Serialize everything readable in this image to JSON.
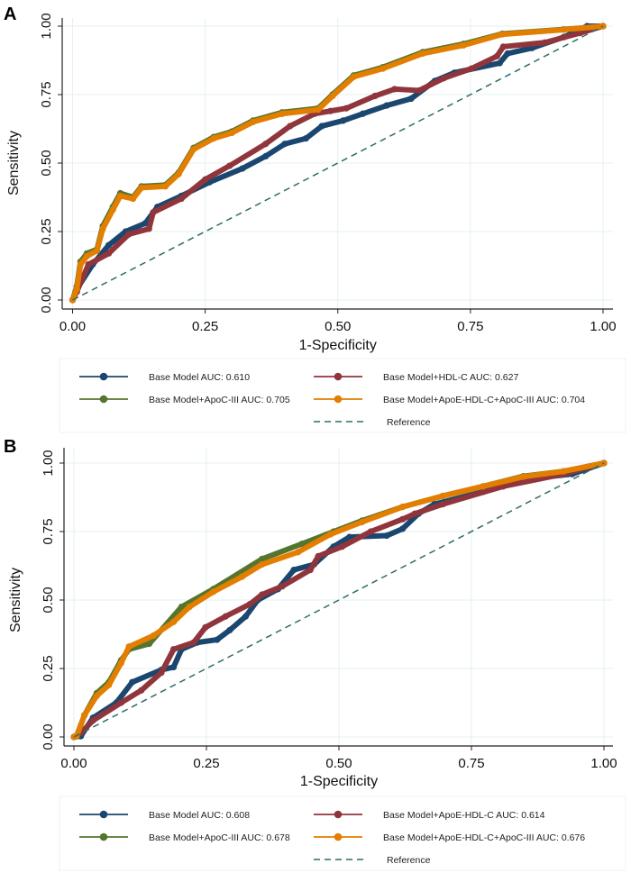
{
  "colors": {
    "base": "#1a476f",
    "hdl": "#90353b",
    "apoc": "#55752f",
    "combined": "#e37e00",
    "reference": "#2d6d66",
    "grid": "#e6eff1"
  },
  "chart_data": [
    {
      "type": "line",
      "panel_label": "A",
      "xlabel": "1-Specificity",
      "ylabel": "Sensitivity",
      "xlim": [
        0,
        1
      ],
      "ylim": [
        0,
        1
      ],
      "xticks": [
        "0.00",
        "0.25",
        "0.50",
        "0.75",
        "1.00"
      ],
      "yticks": [
        "0.00",
        "0.25",
        "0.50",
        "0.75",
        "1.00"
      ],
      "grid": true,
      "legend_position": "bottom",
      "series": [
        {
          "name": "Base Model AUC: 0.610",
          "color_key": "base",
          "x": [
            0,
            0.008,
            0.038,
            0.068,
            0.1,
            0.137,
            0.16,
            0.205,
            0.258,
            0.32,
            0.364,
            0.4,
            0.44,
            0.47,
            0.51,
            0.547,
            0.592,
            0.638,
            0.683,
            0.72,
            0.805,
            0.82,
            0.866,
            0.926,
            0.97,
            1
          ],
          "y": [
            0,
            0.04,
            0.13,
            0.2,
            0.25,
            0.28,
            0.34,
            0.38,
            0.43,
            0.48,
            0.525,
            0.57,
            0.59,
            0.635,
            0.655,
            0.68,
            0.71,
            0.735,
            0.8,
            0.83,
            0.865,
            0.9,
            0.92,
            0.96,
            1,
            1
          ]
        },
        {
          "name": "Base Model+HDL-C AUC: 0.627",
          "color_key": "hdl",
          "x": [
            0,
            0.008,
            0.03,
            0.068,
            0.106,
            0.144,
            0.152,
            0.205,
            0.25,
            0.296,
            0.364,
            0.41,
            0.456,
            0.486,
            0.516,
            0.57,
            0.607,
            0.653,
            0.7,
            0.752,
            0.8,
            0.812,
            0.89,
            0.957,
            1
          ],
          "y": [
            0,
            0.03,
            0.13,
            0.17,
            0.24,
            0.26,
            0.32,
            0.37,
            0.44,
            0.49,
            0.57,
            0.635,
            0.68,
            0.69,
            0.7,
            0.745,
            0.77,
            0.765,
            0.81,
            0.845,
            0.89,
            0.925,
            0.94,
            0.975,
            1
          ]
        },
        {
          "name": "Base Model+ApoC-III AUC: 0.705",
          "color_key": "apoc",
          "x": [
            0,
            0.008,
            0.015,
            0.027,
            0.046,
            0.057,
            0.076,
            0.09,
            0.114,
            0.13,
            0.175,
            0.2,
            0.228,
            0.266,
            0.3,
            0.34,
            0.395,
            0.463,
            0.49,
            0.53,
            0.585,
            0.66,
            0.737,
            0.81,
            0.926,
            1
          ],
          "y": [
            0,
            0.05,
            0.14,
            0.17,
            0.185,
            0.27,
            0.34,
            0.39,
            0.375,
            0.415,
            0.42,
            0.465,
            0.555,
            0.595,
            0.615,
            0.655,
            0.685,
            0.7,
            0.75,
            0.82,
            0.85,
            0.905,
            0.935,
            0.972,
            0.988,
            1
          ]
        },
        {
          "name": "Base Model+ApoE-HDL-C+ApoC-III AUC: 0.704",
          "color_key": "combined",
          "x": [
            0,
            0.008,
            0.015,
            0.027,
            0.046,
            0.057,
            0.076,
            0.09,
            0.114,
            0.13,
            0.175,
            0.2,
            0.228,
            0.266,
            0.3,
            0.34,
            0.395,
            0.463,
            0.49,
            0.53,
            0.585,
            0.66,
            0.737,
            0.81,
            0.926,
            1
          ],
          "y": [
            0,
            0.04,
            0.13,
            0.16,
            0.18,
            0.26,
            0.33,
            0.38,
            0.37,
            0.41,
            0.415,
            0.46,
            0.55,
            0.59,
            0.61,
            0.65,
            0.68,
            0.695,
            0.745,
            0.815,
            0.845,
            0.9,
            0.93,
            0.97,
            0.987,
            1
          ]
        }
      ],
      "reference": {
        "name": "Reference",
        "x": [
          0,
          1
        ],
        "y": [
          0,
          1
        ]
      }
    },
    {
      "type": "line",
      "panel_label": "B",
      "xlabel": "1-Specificity",
      "ylabel": "Sensitivity",
      "xlim": [
        0,
        1
      ],
      "ylim": [
        0,
        1
      ],
      "xticks": [
        "0.00",
        "0.25",
        "0.50",
        "0.75",
        "1.00"
      ],
      "yticks": [
        "0.00",
        "0.25",
        "0.50",
        "0.75",
        "1.00"
      ],
      "grid": true,
      "legend_position": "bottom",
      "series": [
        {
          "name": "Base Model AUC: 0.608",
          "color_key": "base",
          "x": [
            0,
            0.013,
            0.036,
            0.08,
            0.11,
            0.165,
            0.188,
            0.203,
            0.233,
            0.27,
            0.294,
            0.324,
            0.347,
            0.385,
            0.415,
            0.453,
            0.49,
            0.52,
            0.59,
            0.62,
            0.65,
            0.68,
            0.772,
            0.848,
            0.94,
            1
          ],
          "y": [
            0,
            0.003,
            0.07,
            0.125,
            0.2,
            0.245,
            0.255,
            0.32,
            0.345,
            0.355,
            0.39,
            0.44,
            0.5,
            0.54,
            0.61,
            0.63,
            0.695,
            0.73,
            0.735,
            0.76,
            0.815,
            0.85,
            0.895,
            0.94,
            0.96,
            1
          ]
        },
        {
          "name": "Base Model+ApoE-HDL-C AUC: 0.614",
          "color_key": "hdl",
          "x": [
            0,
            0.013,
            0.036,
            0.089,
            0.127,
            0.165,
            0.188,
            0.226,
            0.248,
            0.286,
            0.332,
            0.355,
            0.393,
            0.446,
            0.461,
            0.506,
            0.56,
            0.62,
            0.643,
            0.696,
            0.81,
            0.924,
            1
          ],
          "y": [
            0,
            0.015,
            0.06,
            0.125,
            0.17,
            0.235,
            0.32,
            0.345,
            0.4,
            0.44,
            0.485,
            0.52,
            0.55,
            0.61,
            0.66,
            0.695,
            0.75,
            0.795,
            0.815,
            0.85,
            0.915,
            0.96,
            1
          ]
        },
        {
          "name": "Base Model+ApoC-III AUC: 0.678",
          "color_key": "apoc",
          "x": [
            0,
            0.005,
            0.02,
            0.043,
            0.066,
            0.089,
            0.104,
            0.142,
            0.203,
            0.263,
            0.355,
            0.43,
            0.49,
            0.544,
            0.62,
            0.696,
            0.772,
            0.848,
            0.924,
            1
          ],
          "y": [
            0,
            0.003,
            0.08,
            0.16,
            0.2,
            0.28,
            0.32,
            0.34,
            0.475,
            0.54,
            0.65,
            0.705,
            0.75,
            0.79,
            0.84,
            0.88,
            0.915,
            0.952,
            0.97,
            1
          ]
        },
        {
          "name": "Base Model+ApoE-HDL-C+ApoC-III AUC: 0.676",
          "color_key": "combined",
          "x": [
            0,
            0.005,
            0.02,
            0.043,
            0.066,
            0.089,
            0.104,
            0.15,
            0.188,
            0.218,
            0.263,
            0.317,
            0.355,
            0.423,
            0.484,
            0.544,
            0.62,
            0.696,
            0.772,
            0.848,
            0.924,
            1
          ],
          "y": [
            0,
            0.003,
            0.08,
            0.15,
            0.19,
            0.27,
            0.33,
            0.37,
            0.42,
            0.475,
            0.53,
            0.585,
            0.63,
            0.675,
            0.74,
            0.785,
            0.84,
            0.88,
            0.915,
            0.95,
            0.97,
            1
          ]
        }
      ],
      "reference": {
        "name": "Reference",
        "x": [
          0,
          1
        ],
        "y": [
          0,
          1
        ]
      }
    }
  ]
}
